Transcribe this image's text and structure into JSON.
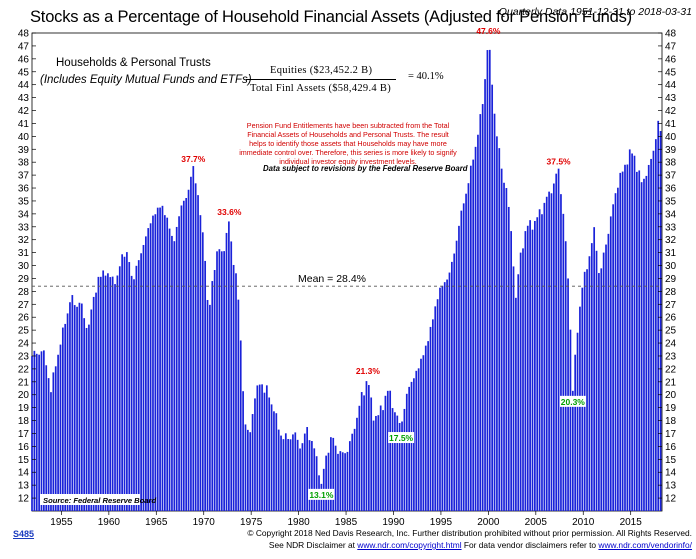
{
  "header": {
    "title": "Stocks as a Percentage of Household Financial Assets (Adjusted for Pension Funds)",
    "subtitle": "Quarterly Data 1951-12-31 to 2018-03-31"
  },
  "legend": {
    "line1": "Households & Personal Trusts",
    "line2": "(Includes Equity Mutual Funds and ETFs)"
  },
  "formula": {
    "numerator": "Equities ($23,452.2 B)",
    "denominator": "Total Finl Assets ($58,429.4 B)",
    "result": "= 40.1%"
  },
  "note": "Pension Fund Entitlements have been subtracted from the Total Financial Assets of Households and Personal Trusts. The result helps to identify those assets that Households may have more immediate control over. Therefore, this series is more likely to signify individual investor equity investment levels.",
  "revision_note": "Data subject to revisions by the Federal Reserve Board",
  "footer": {
    "code": "S485",
    "copyright": "© Copyright 2018 Ned Davis Research, Inc. Further distribution prohibited without prior permission. All Rights Reserved.",
    "disclaimer_prefix": "See NDR Disclaimer at ",
    "disclaimer_url": "www.ndr.com/copyright.html",
    "disclaimer_mid": "  For data vendor disclaimers refer to ",
    "vendor_url": "www.ndr.com/vendorinfo/"
  },
  "colors": {
    "bar": "#1a22d9",
    "mean_line": "#555555",
    "peak_label": "#e00000",
    "trough_label": "#00a000"
  },
  "chart_data": {
    "type": "bar",
    "title": "Stocks as a Percentage of Household Financial Assets (Adjusted for Pension Funds)",
    "ylabel": "",
    "xlabel": "",
    "ylim": [
      11,
      48
    ],
    "xlim": [
      1951.9,
      2018.3
    ],
    "x_ticks": [
      1955,
      1960,
      1965,
      1970,
      1975,
      1980,
      1985,
      1990,
      1995,
      2000,
      2005,
      2010,
      2015
    ],
    "y_ticks": [
      12,
      13,
      14,
      15,
      16,
      17,
      18,
      19,
      20,
      21,
      22,
      23,
      24,
      25,
      26,
      27,
      28,
      29,
      30,
      31,
      32,
      33,
      34,
      35,
      36,
      37,
      38,
      39,
      40,
      41,
      42,
      43,
      44,
      45,
      46,
      47,
      48
    ],
    "mean": 28.4,
    "mean_label": "Mean = 28.4%",
    "source": "Source: Federal Reserve Board",
    "anchors": [
      [
        1951.9,
        23.0
      ],
      [
        1952.5,
        23.2
      ],
      [
        1953.0,
        23.4
      ],
      [
        1953.5,
        22.0
      ],
      [
        1953.9,
        20.2
      ],
      [
        1954.5,
        22.6
      ],
      [
        1955.0,
        24.2
      ],
      [
        1955.5,
        25.8
      ],
      [
        1956.0,
        27.5
      ],
      [
        1956.5,
        26.8
      ],
      [
        1957.0,
        27.2
      ],
      [
        1957.8,
        25.0
      ],
      [
        1958.5,
        28.0
      ],
      [
        1959.5,
        29.8
      ],
      [
        1960.0,
        29.3
      ],
      [
        1960.8,
        28.9
      ],
      [
        1961.5,
        31.2
      ],
      [
        1962.2,
        30.2
      ],
      [
        1962.5,
        28.7
      ],
      [
        1963.5,
        31.2
      ],
      [
        1964.5,
        33.5
      ],
      [
        1965.5,
        34.6
      ],
      [
        1966.3,
        33.2
      ],
      [
        1966.8,
        31.5
      ],
      [
        1967.5,
        34.2
      ],
      [
        1968.3,
        35.5
      ],
      [
        1968.9,
        37.7
      ],
      [
        1969.5,
        35.0
      ],
      [
        1970.2,
        30.0
      ],
      [
        1970.5,
        26.0
      ],
      [
        1971.0,
        29.5
      ],
      [
        1971.5,
        31.5
      ],
      [
        1972.0,
        31.0
      ],
      [
        1972.7,
        33.6
      ],
      [
        1973.0,
        31.0
      ],
      [
        1973.5,
        29.0
      ],
      [
        1974.0,
        23.0
      ],
      [
        1974.3,
        18.0
      ],
      [
        1974.8,
        16.5
      ],
      [
        1975.3,
        19.5
      ],
      [
        1976.0,
        21.0
      ],
      [
        1976.8,
        20.0
      ],
      [
        1977.5,
        18.5
      ],
      [
        1978.0,
        17.0
      ],
      [
        1978.8,
        16.5
      ],
      [
        1979.5,
        17.0
      ],
      [
        1980.3,
        16.0
      ],
      [
        1980.9,
        17.5
      ],
      [
        1981.5,
        16.2
      ],
      [
        1982.0,
        15.0
      ],
      [
        1982.4,
        13.1
      ],
      [
        1982.8,
        15.0
      ],
      [
        1983.5,
        17.0
      ],
      [
        1984.2,
        15.3
      ],
      [
        1985.0,
        15.5
      ],
      [
        1985.8,
        17.0
      ],
      [
        1986.5,
        19.5
      ],
      [
        1987.3,
        21.3
      ],
      [
        1987.9,
        18.0
      ],
      [
        1988.5,
        18.5
      ],
      [
        1989.5,
        20.5
      ],
      [
        1990.2,
        18.5
      ],
      [
        1990.8,
        17.5
      ],
      [
        1991.5,
        20.5
      ],
      [
        1992.5,
        22.0
      ],
      [
        1993.5,
        24.0
      ],
      [
        1994.3,
        26.5
      ],
      [
        1994.8,
        28.2
      ],
      [
        1995.5,
        28.8
      ],
      [
        1996.3,
        30.5
      ],
      [
        1997.0,
        33.5
      ],
      [
        1997.8,
        36.0
      ],
      [
        1998.6,
        39.0
      ],
      [
        1999.0,
        40.5
      ],
      [
        1999.5,
        43.0
      ],
      [
        2000.0,
        47.6
      ],
      [
        2000.4,
        44.0
      ],
      [
        2000.8,
        40.5
      ],
      [
        2001.5,
        37.0
      ],
      [
        2001.9,
        36.0
      ],
      [
        2002.5,
        32.0
      ],
      [
        2002.9,
        27.5
      ],
      [
        2003.4,
        31.0
      ],
      [
        2004.0,
        33.0
      ],
      [
        2005.0,
        33.5
      ],
      [
        2006.0,
        35.0
      ],
      [
        2007.0,
        36.5
      ],
      [
        2007.4,
        37.5
      ],
      [
        2007.9,
        34.0
      ],
      [
        2008.5,
        28.0
      ],
      [
        2008.9,
        20.3
      ],
      [
        2009.3,
        24.0
      ],
      [
        2009.8,
        28.0
      ],
      [
        2010.5,
        30.0
      ],
      [
        2011.2,
        33.2
      ],
      [
        2011.7,
        29.0
      ],
      [
        2012.5,
        32.0
      ],
      [
        2013.5,
        36.0
      ],
      [
        2014.5,
        38.0
      ],
      [
        2015.3,
        39.0
      ],
      [
        2015.7,
        37.0
      ],
      [
        2016.3,
        36.5
      ],
      [
        2017.0,
        38.0
      ],
      [
        2017.6,
        39.5
      ],
      [
        2017.9,
        41.2
      ],
      [
        2018.25,
        40.1
      ]
    ],
    "annotations": [
      {
        "x": 1968.9,
        "y": 37.7,
        "text": "37.7%",
        "kind": "peak"
      },
      {
        "x": 1972.7,
        "y": 33.6,
        "text": "33.6%",
        "kind": "peak"
      },
      {
        "x": 1982.4,
        "y": 13.1,
        "text": "13.1%",
        "kind": "trough"
      },
      {
        "x": 1987.3,
        "y": 21.3,
        "text": "21.3%",
        "kind": "peak"
      },
      {
        "x": 1990.8,
        "y": 17.5,
        "text": "17.5%",
        "kind": "trough"
      },
      {
        "x": 2000.0,
        "y": 47.6,
        "text": "47.6%",
        "kind": "peak"
      },
      {
        "x": 2007.4,
        "y": 37.5,
        "text": "37.5%",
        "kind": "peak"
      },
      {
        "x": 2008.9,
        "y": 20.3,
        "text": "20.3%",
        "kind": "trough"
      }
    ]
  }
}
